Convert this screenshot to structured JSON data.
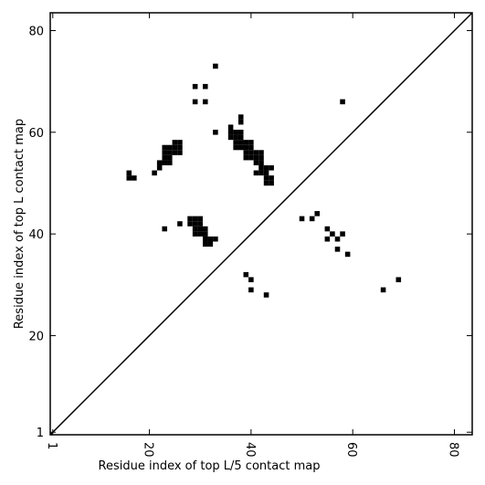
{
  "chart_data": {
    "type": "scatter",
    "x_label": "Residue index of top L/5 contact map",
    "y_label": "Residue index of top L contact map",
    "color": "#000000",
    "x": [
      16,
      16,
      17,
      21,
      22,
      22,
      23,
      24,
      23,
      24,
      23,
      24,
      23,
      24,
      25,
      26,
      25,
      26,
      25,
      26,
      36,
      36,
      36,
      37,
      38,
      37,
      38,
      37,
      38,
      37,
      38,
      38,
      38,
      39,
      40,
      39,
      40,
      39,
      40,
      39,
      40,
      41,
      42,
      41,
      42,
      41,
      42,
      42,
      43,
      44,
      41,
      42,
      43,
      43,
      44,
      43,
      44,
      23,
      26,
      28,
      29,
      30,
      28,
      29,
      30,
      29,
      30,
      31,
      29,
      30,
      31,
      31,
      32,
      33,
      31,
      32,
      33,
      29,
      31,
      29,
      31,
      58,
      33,
      50,
      52,
      53,
      55,
      55,
      56,
      57,
      58,
      57,
      59,
      39,
      40,
      40,
      43,
      66,
      69
    ],
    "values": [
      52,
      51,
      51,
      52,
      53,
      54,
      54,
      54,
      55,
      55,
      56,
      56,
      57,
      57,
      56,
      56,
      57,
      57,
      58,
      58,
      61,
      60,
      59,
      60,
      60,
      59,
      59,
      58,
      58,
      57,
      57,
      62,
      63,
      58,
      58,
      57,
      57,
      56,
      56,
      55,
      55,
      56,
      56,
      55,
      55,
      54,
      54,
      53,
      53,
      53,
      52,
      52,
      52,
      51,
      51,
      50,
      50,
      41,
      42,
      43,
      43,
      43,
      42,
      42,
      42,
      41,
      41,
      41,
      40,
      40,
      40,
      39,
      39,
      39,
      38,
      38,
      73,
      69,
      69,
      66,
      66,
      66,
      60,
      43,
      43,
      44,
      41,
      39,
      40,
      39,
      40,
      37,
      36,
      32,
      31,
      29,
      28,
      29,
      31
    ],
    "xlim": [
      0.5,
      83.5
    ],
    "ylim": [
      0.5,
      83.5
    ],
    "xticks": [
      1,
      20,
      40,
      60,
      80
    ],
    "yticks": [
      1,
      20,
      40,
      60,
      80
    ]
  }
}
